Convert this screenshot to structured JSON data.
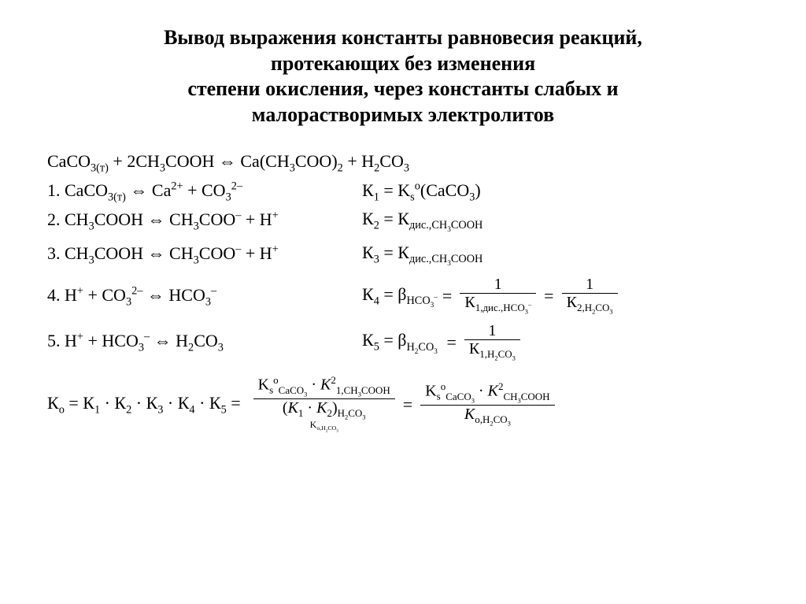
{
  "title_l1": "Вывод выражения константы равновесия реакций,",
  "title_l2": "протекающих без изменения",
  "title_l3": "степени окисления, через константы слабых и",
  "title_l4": "малорастворимых электролитов",
  "rxn_main": "CaCO<sub>3(т)</sub> + 2CH<sub>3</sub>COOH ⇔ Ca(CH<sub>3</sub>COO)<sub>2</sub> + H<sub>2</sub>CO<sub>3</sub>",
  "r1_left": "1. CaCO<sub>3(т)</sub> ⇔ Ca<sup>2+</sup> + CO<sub>3</sub><sup>2–</sup>",
  "r1_right": "К<sub>1</sub> = K<sub>s</sub><sup>o</sup>(CaCO<sub>3</sub>)",
  "r2_left": "2. CH<sub>3</sub>COOH ⇔ CH<sub>3</sub>COO<sup>–</sup> + H<sup>+</sup>",
  "r2_right": "К<sub>2</sub> =  К<sub>дис.,CH<sub>3</sub>COOH</sub>",
  "r3_left": "3. CH<sub>3</sub>COOH ⇔ CH<sub>3</sub>COO<sup>–</sup> + H<sup>+</sup>",
  "r3_right": "К<sub>3</sub> =  К<sub>дис.,CH<sub>3</sub>COOH</sub>",
  "r4_left": "4. H<sup>+</sup> + CO<sub>3</sub><sup>2–</sup> ⇔ HCO<sub>3</sub><sup>–</sup>",
  "r4_k": "К<sub>4</sub> = β<sub>HCO<sub>3</sub><sup>–</sup></sub>",
  "r4_f1_top": "1",
  "r4_f1_bot": "К<sub>1,дис.,HCO<sub>3</sub><sup>–</sup></sub>",
  "r4_f2_top": "1",
  "r4_f2_bot": "К<sub>2,H<sub>2</sub>CO<sub>3</sub></sub>",
  "r5_left": "5. H<sup>+</sup> + HCO<sub>3</sub><sup>–</sup> ⇔ H<sub>2</sub>CO<sub>3</sub>",
  "r5_k": "К<sub>5</sub> = β<sub>H<sub>2</sub>CO<sub>3</sub></sub>",
  "r5_f_top": "1",
  "r5_f_bot": "К<sub>1,H<sub>2</sub>CO<sub>3</sub></sub>",
  "final_left": "К<sub>o</sub> = К<sub>1</sub> · К<sub>2</sub> · К<sub>3</sub> · К<sub>4</sub> · К<sub>5</sub> =",
  "final_f1_top": "K<sub>s</sub><sup>o</sup><sub>CaCO<sub>3</sub></sub> · <i>K</i><sup>2</sup><sub>1,CH<sub>3</sub>COOH</sub>",
  "final_f1_bot_main": "(<i>K</i><sub>1</sub> · <i>K</i><sub>2</sub>)<sub>H<sub>2</sub>CO<sub>3</sub></sub>",
  "final_f1_bot_under": "K<sub>o,H<sub>2</sub>CO<sub>3</sub></sub>",
  "final_f2_top": "K<sub>s</sub><sup>o</sup><sub>CaCO<sub>3</sub></sub> · <i>K</i><sup>2</sup><sub>CH<sub>3</sub>COOH</sub>",
  "final_f2_bot": "<i>K</i><sub>o,H<sub>2</sub>CO<sub>3</sub></sub>",
  "style": {
    "bg": "#ffffff",
    "text": "#000000",
    "title_fontsize": 26,
    "body_fontsize": 22,
    "frac_fontsize": 20,
    "font_family": "Times New Roman"
  }
}
